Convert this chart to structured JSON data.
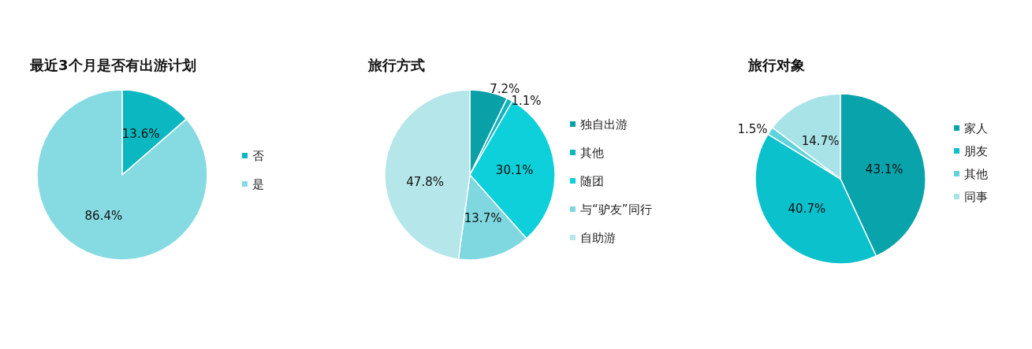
{
  "chart_data": [
    {
      "type": "pie",
      "title": "最近3个月是否有出游计划",
      "categories": [
        "否",
        "是"
      ],
      "values": [
        13.6,
        86.4
      ],
      "colors": [
        "#0bb8c1",
        "#86dbe2"
      ],
      "value_labels": [
        "13.6%",
        "86.4%"
      ],
      "legend": "right"
    },
    {
      "type": "pie",
      "title": "旅行方式",
      "categories": [
        "独自出游",
        "其他",
        "随团",
        "与“驴友”同行",
        "自助游"
      ],
      "values": [
        7.2,
        1.1,
        30.1,
        13.7,
        47.8
      ],
      "colors": [
        "#0aa0a8",
        "#0fb5bf",
        "#0dd0da",
        "#7fd8e0",
        "#b5e6ea"
      ],
      "value_labels": [
        "7.2%",
        "1.1%",
        "30.1%",
        "13.7%",
        "47.8%"
      ],
      "legend": "right"
    },
    {
      "type": "pie",
      "title": "旅行对象",
      "categories": [
        "家人",
        "朋友",
        "其他",
        "同事"
      ],
      "values": [
        43.1,
        40.7,
        1.5,
        14.7
      ],
      "colors": [
        "#08a3ab",
        "#0bc1cc",
        "#5fd3dc",
        "#a8e3e8"
      ],
      "value_labels": [
        "43.1%",
        "40.7%",
        "1.5%",
        "14.7%"
      ],
      "legend": "right"
    }
  ]
}
